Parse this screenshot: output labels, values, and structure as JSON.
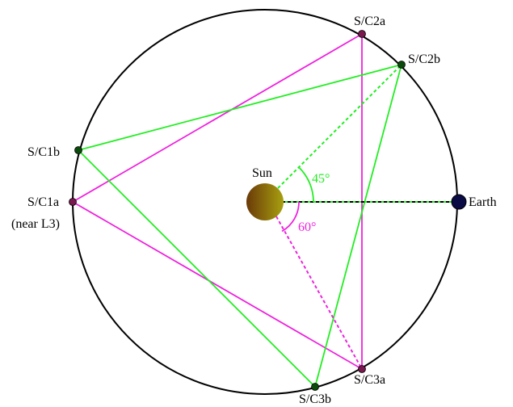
{
  "colors": {
    "orbit": "#000000",
    "green": "#22ee22",
    "magenta": "#ee22dd",
    "earth": "#0a0a44",
    "sun_left": "#6a3a08",
    "sun_right": "#a8a010",
    "node_magenta": "#7a1850",
    "node_green": "#0a4a0a"
  },
  "labels": {
    "sun": "Sun",
    "earth": "Earth",
    "sc2a": "S/C2a",
    "sc2b": "S/C2b",
    "sc1b": "S/C1b",
    "sc1a": "S/C1a",
    "sc1a_note": "(near L3)",
    "sc3a": "S/C3a",
    "sc3b": "S/C3b"
  },
  "angles": {
    "green": "45°",
    "magenta": "60°"
  }
}
